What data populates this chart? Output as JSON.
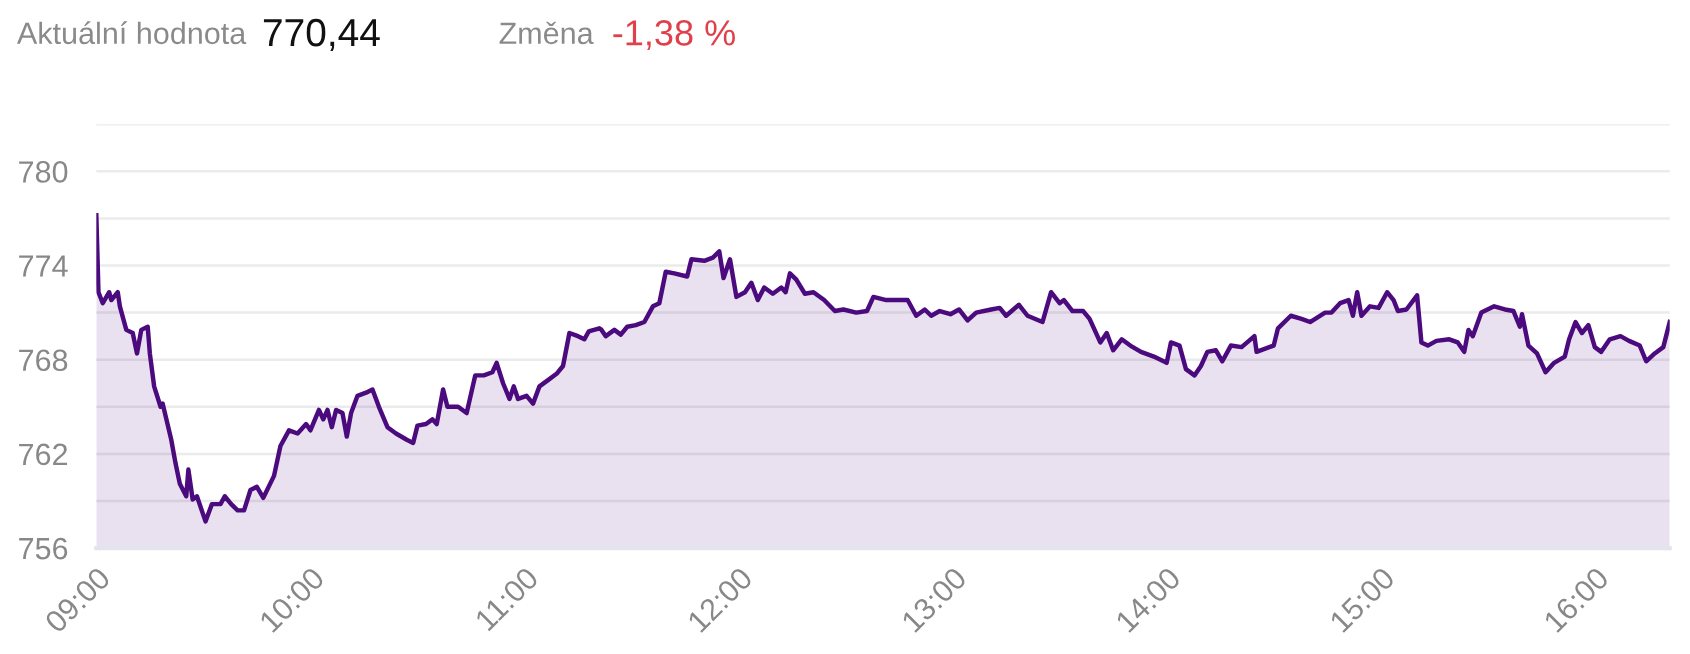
{
  "chart_data": {
    "type": "area",
    "annotations": [
      "Aktuální hodnota",
      "770,44",
      "Změna",
      "-1,38 %"
    ],
    "xlim": [
      9,
      16.35
    ],
    "xticks": [
      {
        "value": 9,
        "label": "09:00"
      },
      {
        "value": 10,
        "label": "10:00"
      },
      {
        "value": 11,
        "label": "11:00"
      },
      {
        "value": 12,
        "label": "12:00"
      },
      {
        "value": 13,
        "label": "13:00"
      },
      {
        "value": 14,
        "label": "14:00"
      },
      {
        "value": 15,
        "label": "15:00"
      },
      {
        "value": 16,
        "label": "16:00"
      }
    ],
    "ylim": [
      756,
      783
    ],
    "yticks": [
      756,
      {
        "value": 759,
        "label": null
      },
      762,
      {
        "value": 765,
        "label": null
      },
      768,
      {
        "value": 771,
        "label": null
      },
      774,
      {
        "value": 777,
        "label": null
      },
      780,
      {
        "value": 783,
        "label": null
      }
    ],
    "grid": "y",
    "series": [
      {
        "color": "#4b0a7d",
        "x": [
          9.0,
          9.01,
          9.03,
          9.06,
          9.07,
          9.1,
          9.11,
          9.14,
          9.17,
          9.19,
          9.21,
          9.24,
          9.25,
          9.27,
          9.3,
          9.31,
          9.35,
          9.37,
          9.39,
          9.42,
          9.43,
          9.45,
          9.47,
          9.51,
          9.54,
          9.58,
          9.6,
          9.63,
          9.66,
          9.69,
          9.72,
          9.75,
          9.78,
          9.83,
          9.86,
          9.9,
          9.94,
          9.98,
          10.0,
          10.04,
          10.06,
          10.08,
          10.1,
          10.12,
          10.15,
          10.17,
          10.19,
          10.22,
          10.26,
          10.29,
          10.32,
          10.36,
          10.4,
          10.45,
          10.48,
          10.5,
          10.54,
          10.57,
          10.59,
          10.62,
          10.64,
          10.69,
          10.73,
          10.77,
          10.81,
          10.85,
          10.87,
          10.9,
          10.93,
          10.95,
          10.97,
          11.01,
          11.04,
          11.07,
          11.11,
          11.15,
          11.18,
          11.21,
          11.25,
          11.28,
          11.3,
          11.35,
          11.36,
          11.38,
          11.42,
          11.45,
          11.48,
          11.52,
          11.56,
          11.6,
          11.63,
          11.66,
          11.7,
          11.76,
          11.78,
          11.84,
          11.88,
          11.91,
          11.93,
          11.96,
          11.99,
          12.03,
          12.06,
          12.09,
          12.12,
          12.16,
          12.2,
          12.22,
          12.24,
          12.27,
          12.31,
          12.35,
          12.4,
          12.45,
          12.49,
          12.55,
          12.6,
          12.63,
          12.69,
          12.79,
          12.83,
          12.87,
          12.9,
          12.94,
          12.99,
          13.03,
          13.07,
          13.11,
          13.18,
          13.22,
          13.25,
          13.31,
          13.35,
          13.42,
          13.46,
          13.5,
          13.52,
          13.56,
          13.61,
          13.64,
          13.69,
          13.72,
          13.75,
          13.79,
          13.83,
          13.88,
          13.94,
          14.0,
          14.02,
          14.06,
          14.09,
          14.13,
          14.16,
          14.19,
          14.23,
          14.26,
          14.3,
          14.35,
          14.41,
          14.42,
          14.5,
          14.52,
          14.58,
          14.63,
          14.67,
          14.74,
          14.77,
          14.81,
          14.85,
          14.87,
          14.89,
          14.91,
          14.95,
          14.99,
          15.03,
          15.06,
          15.08,
          15.12,
          15.17,
          15.19,
          15.22,
          15.26,
          15.32,
          15.36,
          15.39,
          15.41,
          15.43,
          15.47,
          15.53,
          15.58,
          15.62,
          15.65,
          15.66,
          15.69,
          15.73,
          15.77,
          15.81,
          15.86,
          15.88,
          15.91,
          15.94,
          15.97,
          16.0,
          16.03,
          16.07,
          16.12,
          16.16,
          16.21,
          16.24,
          16.28,
          16.32,
          16.35
        ],
        "values": [
          777.2,
          772.3,
          771.6,
          772.3,
          771.8,
          772.3,
          771.4,
          769.9,
          769.7,
          768.4,
          769.9,
          770.1,
          768.4,
          766.3,
          765.0,
          765.2,
          762.9,
          761.4,
          760.1,
          759.3,
          761.0,
          759.1,
          759.3,
          757.7,
          758.8,
          758.8,
          759.3,
          758.8,
          758.4,
          758.4,
          759.7,
          759.9,
          759.2,
          760.6,
          762.5,
          763.5,
          763.3,
          763.9,
          763.5,
          764.8,
          764.2,
          764.8,
          763.7,
          764.8,
          764.6,
          763.1,
          764.6,
          765.7,
          765.9,
          766.1,
          765.0,
          763.7,
          763.3,
          762.9,
          762.7,
          763.8,
          763.9,
          764.2,
          763.9,
          766.1,
          765.0,
          765.0,
          764.6,
          767.0,
          767.0,
          767.2,
          767.8,
          766.5,
          765.5,
          766.3,
          765.5,
          765.7,
          765.2,
          766.3,
          766.7,
          767.1,
          767.6,
          769.7,
          769.5,
          769.3,
          769.8,
          770.0,
          769.9,
          769.5,
          769.9,
          769.6,
          770.1,
          770.2,
          770.4,
          771.4,
          771.6,
          773.6,
          773.5,
          773.3,
          774.4,
          774.3,
          774.5,
          774.9,
          773.2,
          774.4,
          772.0,
          772.3,
          772.9,
          771.8,
          772.6,
          772.2,
          772.6,
          772.3,
          773.5,
          773.1,
          772.2,
          772.3,
          771.8,
          771.1,
          771.2,
          771.0,
          771.1,
          772.0,
          771.8,
          771.8,
          770.8,
          771.2,
          770.8,
          771.1,
          770.9,
          771.2,
          770.5,
          771.0,
          771.2,
          771.3,
          770.8,
          771.5,
          770.8,
          770.4,
          772.3,
          771.6,
          771.8,
          771.1,
          771.1,
          770.6,
          769.1,
          769.7,
          768.6,
          769.3,
          768.9,
          768.5,
          768.2,
          767.8,
          769.1,
          768.9,
          767.4,
          767.0,
          767.6,
          768.5,
          768.6,
          767.9,
          768.9,
          768.8,
          769.5,
          768.5,
          768.9,
          770.0,
          770.8,
          770.6,
          770.4,
          771.0,
          771.0,
          771.6,
          771.8,
          770.8,
          772.3,
          770.8,
          771.4,
          771.3,
          772.3,
          771.8,
          771.1,
          771.2,
          772.1,
          769.1,
          768.9,
          769.2,
          769.3,
          769.1,
          768.5,
          769.9,
          769.5,
          771.0,
          771.4,
          771.2,
          771.1,
          770.1,
          770.9,
          768.9,
          768.4,
          767.2,
          767.8,
          768.2,
          769.3,
          770.4,
          769.7,
          770.2,
          768.8,
          768.5,
          769.3,
          769.5,
          769.2,
          768.9,
          767.9,
          768.4,
          768.8,
          770.4
        ]
      }
    ]
  }
}
